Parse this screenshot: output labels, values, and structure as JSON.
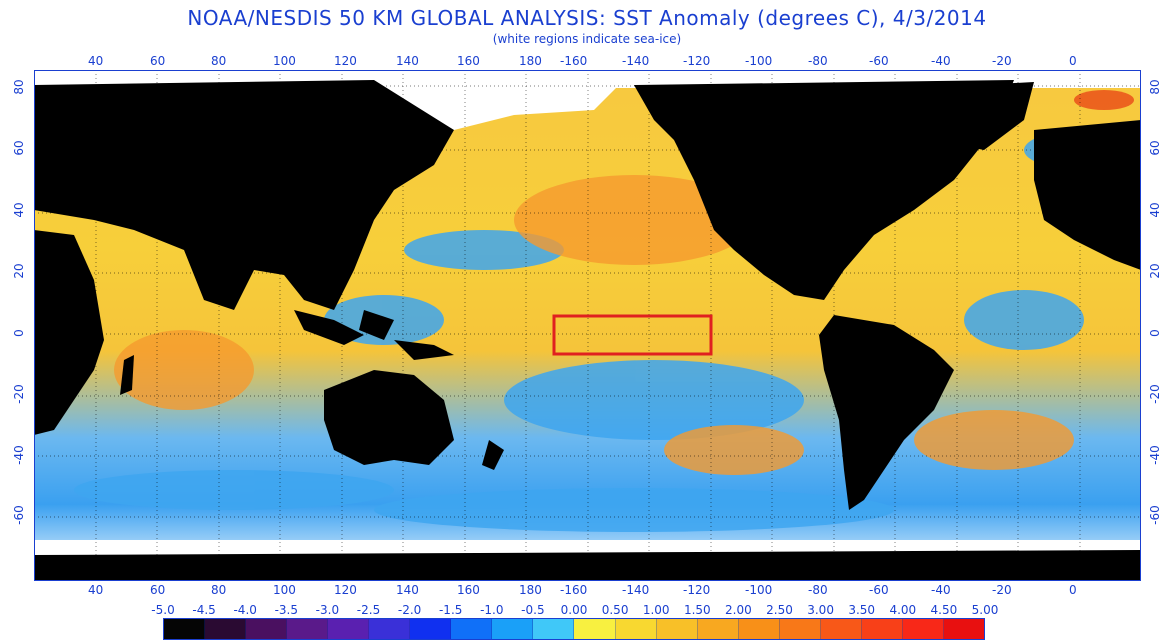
{
  "header": {
    "title": "NOAA/NESDIS 50 KM GLOBAL ANALYSIS: SST Anomaly (degrees C), 4/3/2014",
    "subtitle": "(white regions indicate sea-ice)"
  },
  "map": {
    "lon_labels": [
      "40",
      "60",
      "80",
      "100",
      "120",
      "140",
      "160",
      "180",
      "-160",
      "-140",
      "-120",
      "-100",
      "-80",
      "-60",
      "-40",
      "-20",
      "0"
    ],
    "lat_labels": [
      "80",
      "60",
      "40",
      "20",
      "0",
      "-20",
      "-40",
      "-60"
    ],
    "highlight_box": {
      "lon_range": [
        -170,
        -120
      ],
      "lat_range": [
        -5,
        5
      ],
      "color": "#e02020"
    },
    "colors": {
      "land": "#000000",
      "ice": "#ffffff",
      "ocean_base": "#f7d43a",
      "warm": "#f59a2e",
      "cool": "#3aa8f0"
    }
  },
  "colorbar": {
    "labels": [
      "-5.0",
      "-4.5",
      "-4.0",
      "-3.5",
      "-3.0",
      "-2.5",
      "-2.0",
      "-1.5",
      "-1.0",
      "-0.5",
      "0.00",
      "0.50",
      "1.00",
      "1.50",
      "2.00",
      "2.50",
      "3.00",
      "3.50",
      "4.00",
      "4.50",
      "5.00"
    ],
    "colors": [
      "#050505",
      "#2a0a32",
      "#4a1060",
      "#5a1a8a",
      "#5a20b0",
      "#3a30d8",
      "#1030f0",
      "#1070f8",
      "#1aa0f8",
      "#40c8f8",
      "#f8f040",
      "#f8d830",
      "#f8c028",
      "#f8a820",
      "#f89018",
      "#f87818",
      "#f85818",
      "#f84018",
      "#f82818",
      "#e81010"
    ]
  }
}
